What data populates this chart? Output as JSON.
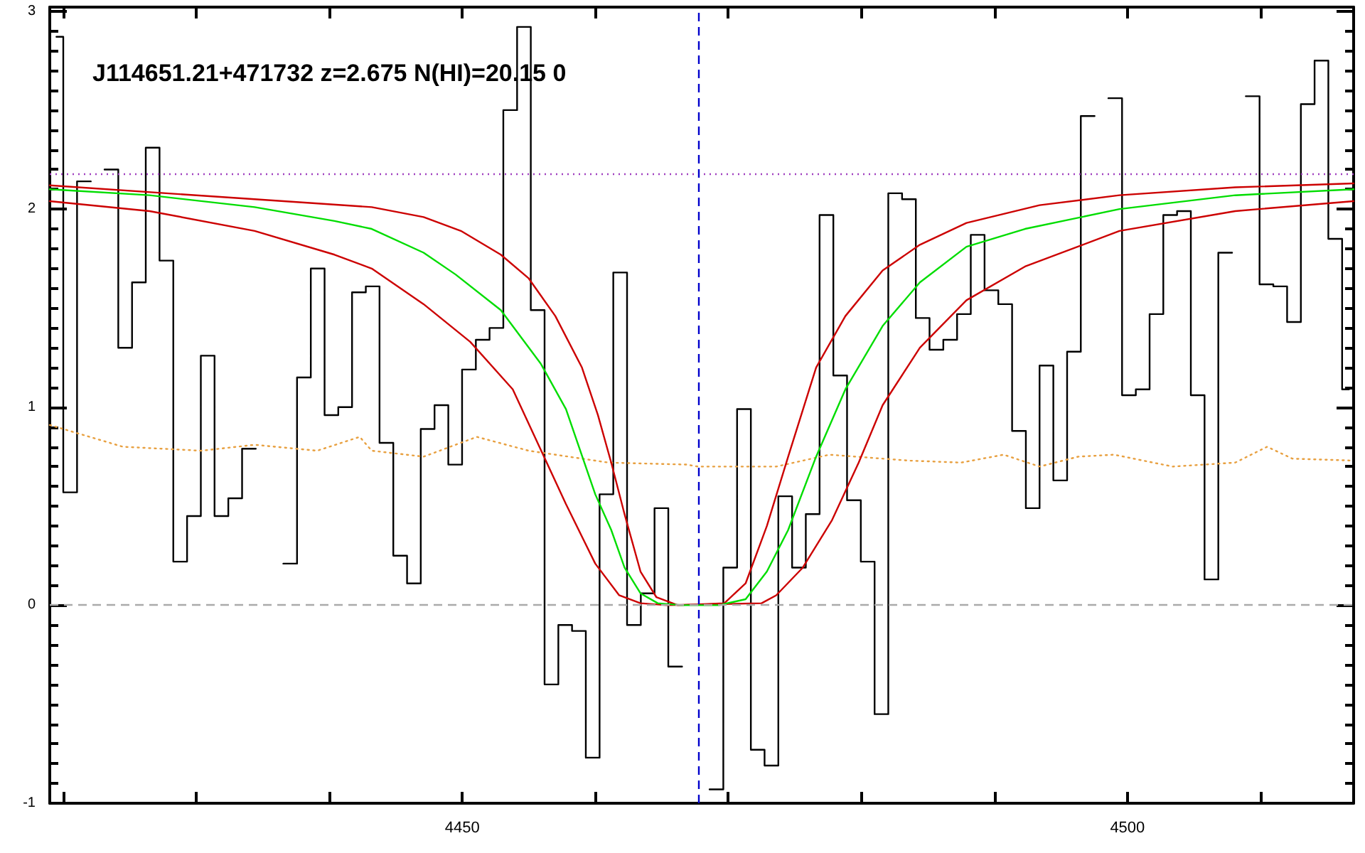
{
  "chart_data": {
    "type": "step",
    "title": "J114651.21+471732 z=2.675 N(HI)=20.15 0",
    "xlim": [
      4419,
      4517
    ],
    "ylim": [
      -1,
      3.02
    ],
    "xticks": [
      {
        "value": 4420,
        "label": null
      },
      {
        "value": 4430,
        "label": null
      },
      {
        "value": 4440,
        "label": null
      },
      4450,
      {
        "value": 4460,
        "label": null
      },
      {
        "value": 4470,
        "label": null
      },
      {
        "value": 4480,
        "label": null
      },
      {
        "value": 4490,
        "label": null
      },
      4500,
      {
        "value": 4510,
        "label": null
      }
    ],
    "yticks": [
      -1,
      0,
      1,
      2,
      3
    ],
    "marker": "none",
    "series": [
      {
        "color": "#000000",
        "x": [
          4419.5,
          4420.53,
          4421.57,
          4422.6,
          4423.63,
          4424.67,
          4425.7,
          4426.73,
          4427.77,
          4428.8,
          4429.84,
          4430.87,
          4431.9,
          4432.94,
          4433.97,
          4435.0,
          4436.04,
          4437.07,
          4438.1,
          4439.14,
          4440.17,
          4441.2,
          4442.24,
          4443.27,
          4444.3,
          4445.34,
          4446.37,
          4447.4,
          4448.44,
          4449.47,
          4450.51,
          4451.54,
          4452.57,
          4453.61,
          4454.64,
          4455.67,
          4456.71,
          4457.74,
          4458.77,
          4459.81,
          4460.84,
          4461.87,
          4462.91,
          4463.94,
          4464.97,
          4466.01,
          4467.04,
          4468.07,
          4469.11,
          4470.14,
          4471.18,
          4472.21,
          4473.24,
          4474.28,
          4475.31,
          4476.34,
          4477.38,
          4478.41,
          4479.44,
          4480.48,
          4481.51,
          4482.54,
          4483.58,
          4484.61,
          4485.64,
          4486.68,
          4487.71,
          4488.74,
          4489.78,
          4490.81,
          4491.85,
          4492.88,
          4493.91,
          4494.95,
          4495.98,
          4497.01,
          4498.05,
          4499.08,
          4500.11,
          4501.15,
          4502.18,
          4503.21,
          4504.25,
          4505.28,
          4506.31,
          4507.35,
          4508.38,
          4509.41,
          4510.45,
          4511.48,
          4512.52,
          4513.55,
          4514.58,
          4515.62,
          4516.65
        ],
        "values": [
          2.87,
          0.57,
          2.14,
          null,
          2.2,
          1.3,
          1.63,
          2.31,
          1.74,
          0.22,
          0.45,
          1.26,
          0.45,
          0.54,
          0.79,
          null,
          null,
          0.21,
          1.15,
          1.7,
          0.96,
          1.0,
          1.58,
          1.61,
          0.82,
          0.25,
          0.11,
          0.89,
          1.01,
          0.71,
          1.19,
          1.34,
          1.4,
          2.5,
          2.92,
          1.49,
          -0.4,
          -0.1,
          -0.13,
          -0.77,
          0.56,
          1.68,
          -0.1,
          0.06,
          0.49,
          -0.31,
          null,
          null,
          -0.93,
          0.19,
          0.99,
          -0.73,
          -0.81,
          0.55,
          0.19,
          0.46,
          1.97,
          1.16,
          0.53,
          0.22,
          -0.55,
          2.08,
          2.05,
          1.45,
          1.29,
          1.34,
          1.47,
          1.87,
          1.59,
          1.52,
          0.88,
          0.49,
          1.21,
          0.63,
          1.28,
          2.47,
          null,
          2.56,
          1.06,
          1.09,
          1.47,
          1.97,
          1.99,
          1.06,
          0.13,
          1.78,
          null,
          2.57,
          1.62,
          1.61,
          1.43,
          2.53,
          2.75,
          1.85,
          1.09
        ]
      },
      {
        "type": "line",
        "color": "#e8a040",
        "line_style": "dotted",
        "x": [
          4419.0,
          4424.5,
          4430.4,
          4434.4,
          4439.1,
          4442.3,
          4443.2,
          4447.1,
          4451.1,
          4455.0,
          4461.0,
          4466.9,
          4467.7,
          4473.6,
          4477.6,
          4483.6,
          4487.5,
          4490.7,
          4493.4,
          4496.3,
          4499.0,
          4503.4,
          4508.1,
          4510.5,
          4512.4,
          4517.0
        ],
        "values": [
          0.91,
          0.8,
          0.78,
          0.81,
          0.78,
          0.85,
          0.78,
          0.75,
          0.85,
          0.78,
          0.72,
          0.71,
          0.7,
          0.7,
          0.76,
          0.73,
          0.72,
          0.76,
          0.7,
          0.75,
          0.76,
          0.7,
          0.72,
          0.8,
          0.74,
          0.73
        ]
      },
      {
        "type": "line",
        "color": "#cc0000",
        "x": [
          4419.0,
          4434.4,
          4443.2,
          4447.1,
          4449.9,
          4452.9,
          4455.0,
          4457.0,
          4459.0,
          4460.2,
          4461.2,
          4462.2,
          4463.4,
          4464.6,
          4466.2,
          4469.7,
          4471.3,
          4472.9,
          4474.5,
          4476.6,
          4478.8,
          4481.6,
          4484.4,
          4487.9,
          4493.4,
          4499.4,
          4508.1,
          4517.0
        ],
        "values": [
          2.12,
          2.05,
          2.01,
          1.96,
          1.89,
          1.77,
          1.65,
          1.46,
          1.2,
          0.96,
          0.72,
          0.46,
          0.17,
          0.04,
          0,
          0.01,
          0.11,
          0.4,
          0.75,
          1.2,
          1.46,
          1.69,
          1.82,
          1.93,
          2.02,
          2.07,
          2.11,
          2.13
        ]
      },
      {
        "type": "line",
        "color": "#cc0000",
        "x": [
          4419.0,
          4426.5,
          4434.4,
          4440.4,
          4443.2,
          4447.1,
          4450.6,
          4453.8,
          4455.8,
          4457.8,
          4460.0,
          4461.8,
          4463.4,
          4465.4,
          4472.5,
          4473.6,
          4475.6,
          4477.8,
          4479.8,
          4481.6,
          4484.4,
          4487.9,
          4492.3,
          4499.4,
          4508.1,
          4517.0
        ],
        "values": [
          2.04,
          1.99,
          1.89,
          1.77,
          1.7,
          1.52,
          1.33,
          1.09,
          0.8,
          0.51,
          0.21,
          0.05,
          0.01,
          0,
          0.01,
          0.05,
          0.19,
          0.43,
          0.72,
          1.01,
          1.3,
          1.54,
          1.71,
          1.89,
          1.99,
          2.04
        ]
      },
      {
        "type": "line",
        "color": "#00dd00",
        "x": [
          4419.0,
          4426.5,
          4434.4,
          4440.4,
          4443.2,
          4447.1,
          4449.5,
          4452.9,
          4455.9,
          4457.8,
          4460.0,
          4461.2,
          4462.2,
          4463.4,
          4464.7,
          4466.5,
          4469.3,
          4471.3,
          4472.9,
          4474.5,
          4476.6,
          4478.8,
          4481.6,
          4484.4,
          4487.9,
          4492.3,
          4499.4,
          4508.1,
          4517.0
        ],
        "values": [
          2.1,
          2.07,
          2.01,
          1.94,
          1.9,
          1.78,
          1.67,
          1.49,
          1.22,
          0.99,
          0.56,
          0.38,
          0.19,
          0.06,
          0.01,
          0,
          0,
          0.03,
          0.17,
          0.38,
          0.75,
          1.09,
          1.41,
          1.63,
          1.81,
          1.9,
          2.0,
          2.07,
          2.1
        ]
      }
    ],
    "ref_lines": [
      {
        "axis": "y",
        "value": 0,
        "color": "#aaaaaa",
        "line_style": "dashed"
      },
      {
        "axis": "y",
        "value": 2.18,
        "color": "#a040c0",
        "line_style": "dotted"
      },
      {
        "axis": "x",
        "value": 4467.78,
        "color": "#0000cc",
        "line_style": "dashed"
      }
    ]
  }
}
